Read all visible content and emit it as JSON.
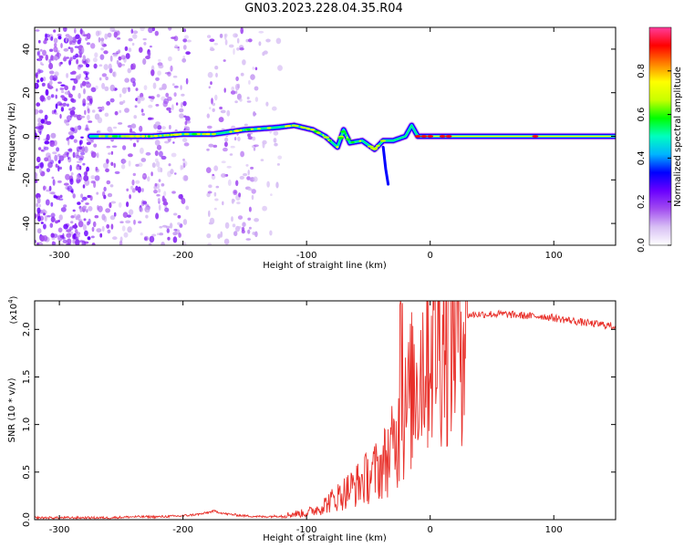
{
  "title": "GN03.2023.228.04.35.R04",
  "colors": {
    "snr_line": "#e8302a",
    "axis": "#000000",
    "colormap": [
      "#ffffff",
      "#d8c0f4",
      "#a24cf0",
      "#6a00ff",
      "#0000ff",
      "#00b4ff",
      "#00ffc0",
      "#00ff00",
      "#c8ff00",
      "#ffff00",
      "#ff8000",
      "#ff0000",
      "#ff3c9c"
    ]
  },
  "chart_data": [
    {
      "type": "heatmap",
      "xlabel": "Height of straight line (km)",
      "ylabel": "Frequency (Hz)",
      "xlim": [
        -320,
        150
      ],
      "ylim": [
        -50,
        50
      ],
      "xticks": [
        "-300",
        "-200",
        "-100",
        "0",
        "100"
      ],
      "yticks": [
        "-40",
        "-20",
        "0",
        "20",
        "40"
      ],
      "colorbar": {
        "label": "Normalized spectral amplitude",
        "range": [
          0,
          1
        ],
        "ticks": [
          "0.0",
          "0.2",
          "0.4",
          "0.6",
          "0.8"
        ]
      },
      "signal_centerline": [
        [
          -275,
          0
        ],
        [
          -250,
          0
        ],
        [
          -225,
          0
        ],
        [
          -200,
          1
        ],
        [
          -175,
          1
        ],
        [
          -150,
          3
        ],
        [
          -125,
          4
        ],
        [
          -110,
          5
        ],
        [
          -95,
          3
        ],
        [
          -85,
          0
        ],
        [
          -75,
          -5
        ],
        [
          -70,
          3
        ],
        [
          -65,
          -3
        ],
        [
          -55,
          -2
        ],
        [
          -45,
          -6
        ],
        [
          -38,
          -2
        ],
        [
          -30,
          -2
        ],
        [
          -20,
          0
        ],
        [
          -15,
          5
        ],
        [
          -10,
          0
        ],
        [
          0,
          0
        ],
        [
          50,
          0
        ],
        [
          100,
          0
        ],
        [
          150,
          0
        ]
      ]
    },
    {
      "type": "line",
      "xlabel": "Height of straight line (km)",
      "ylabel": "SNR (10 * v/v)",
      "multiplier_label": "(x10",
      "multiplier_exp": "4",
      "multiplier_close": ")",
      "xlim": [
        -320,
        150
      ],
      "ylim": [
        0,
        2.3
      ],
      "xticks": [
        "-300",
        "-200",
        "-100",
        "0",
        "100"
      ],
      "yticks": [
        "0.0",
        "0.5",
        "1.0",
        "1.5",
        "2.0"
      ],
      "series": [
        {
          "x": [
            -320,
            -300,
            -280,
            -260,
            -240,
            -220,
            -200,
            -185,
            -175,
            -165,
            -150,
            -135,
            -120,
            -110,
            -100,
            -90,
            -80,
            -70,
            -60,
            -50,
            -40,
            -35,
            -30,
            -25,
            -20,
            -15,
            -10,
            -5,
            0,
            5,
            10,
            20,
            30,
            40,
            50,
            60,
            70,
            80,
            90,
            100,
            110,
            120,
            130,
            140,
            150
          ],
          "y": [
            0.02,
            0.02,
            0.02,
            0.02,
            0.03,
            0.03,
            0.04,
            0.06,
            0.09,
            0.06,
            0.04,
            0.03,
            0.04,
            0.06,
            0.07,
            0.12,
            0.2,
            0.28,
            0.36,
            0.45,
            0.55,
            0.65,
            0.75,
            0.9,
            1.1,
            1.35,
            1.55,
            1.75,
            1.9,
            2.0,
            2.05,
            2.1,
            2.15,
            2.16,
            2.16,
            2.16,
            2.15,
            2.14,
            2.14,
            2.12,
            2.1,
            2.08,
            2.06,
            2.05,
            2.03
          ]
        }
      ]
    }
  ]
}
